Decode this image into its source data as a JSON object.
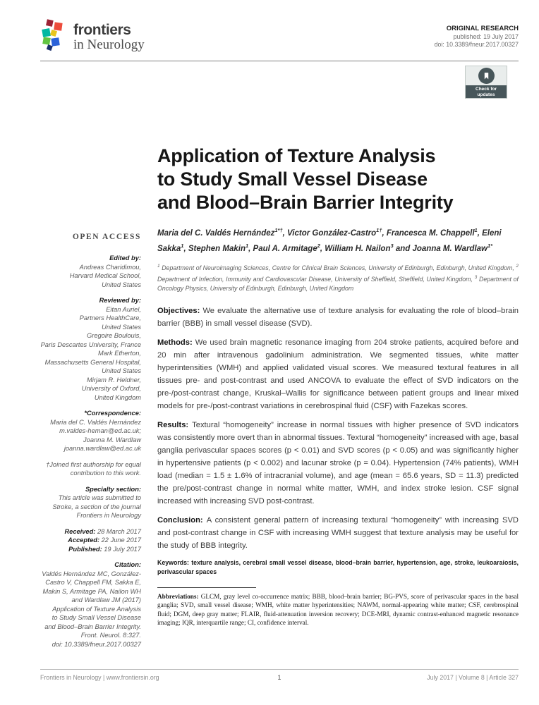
{
  "header": {
    "brand": "frontiers",
    "journal": "in Neurology",
    "article_type": "ORIGINAL RESEARCH",
    "published": "published: 19 July 2017",
    "doi": "doi: 10.3389/fneur.2017.00327"
  },
  "badge": {
    "line1": "Check for",
    "line2": "updates"
  },
  "article": {
    "title_lines": [
      "Application of Texture Analysis",
      "to Study Small Vessel Disease",
      "and Blood–Brain Barrier Integrity"
    ],
    "authors": [
      {
        "name": "Maria del C. Valdés Hernández",
        "sup": "1*†"
      },
      {
        "name": ", Victor González-Castro",
        "sup": "1†"
      },
      {
        "name": ", Francesca M. Chappell",
        "sup": "1"
      },
      {
        "name": ", Eleni Sakka",
        "sup": "1"
      },
      {
        "name": ", Stephen Makin",
        "sup": "1"
      },
      {
        "name": ", Paul A. Armitage",
        "sup": "2"
      },
      {
        "name": ", William H. Nailon",
        "sup": "3"
      },
      {
        "name": " and Joanna M. Wardlaw",
        "sup": "1*"
      }
    ],
    "affiliations": [
      {
        "sup": "1",
        "text": " Department of Neuroimaging Sciences, Centre for Clinical Brain Sciences, University of Edinburgh, Edinburgh, United Kingdom, "
      },
      {
        "sup": "2",
        "text": " Department of Infection, Immunity and Cardiovascular Disease, University of Sheffield, Sheffield, United Kingdom, "
      },
      {
        "sup": "3",
        "text": " Department of Oncology Physics, University of Edinburgh, Edinburgh, United Kingdom"
      }
    ]
  },
  "sidebar": {
    "open_access": "OPEN ACCESS",
    "blocks": [
      {
        "label": "Edited by:",
        "lines": [
          "Andreas Charidimou,",
          "Harvard Medical School,",
          "United States"
        ]
      },
      {
        "label": "Reviewed by:",
        "lines": [
          "Eitan Auriel,",
          "Partners HealthCare,",
          "United States",
          "Gregoire Boulouis,",
          "Paris Descartes University, France",
          "Mark Etherton,",
          "Massachusetts General Hospital,",
          "United States",
          "Mirjam R. Heldner,",
          "University of Oxford,",
          "United Kingdom"
        ]
      },
      {
        "label": "*Correspondence:",
        "lines": [
          "Maria del C. Valdés Hernández",
          "m.valdes-heman@ed.ac.uk;",
          "Joanna M. Wardlaw",
          "joanna.wardlaw@ed.ac.uk"
        ]
      },
      {
        "label": "",
        "lines": [
          "†Joined first authorship for equal",
          "contribution to this work."
        ]
      },
      {
        "label": "Specialty section:",
        "lines": [
          "This article was submitted to",
          "Stroke, a section of the journal",
          "Frontiers in Neurology"
        ]
      }
    ],
    "dates": [
      {
        "label": "Received:",
        "value": "28 March 2017"
      },
      {
        "label": "Accepted:",
        "value": "22 June 2017"
      },
      {
        "label": "Published:",
        "value": "19 July 2017"
      }
    ],
    "citation": {
      "label": "Citation:",
      "lines": [
        "Valdés Hernández MC, González-",
        "Castro V, Chappell FM, Sakka E,",
        "Makin S, Armitage PA, Nailon WH",
        "and Wardlaw JM (2017)",
        "Application of Texture Analysis",
        "to Study Small Vessel Disease",
        "and Blood–Brain Barrier Integrity.",
        "Front. Neurol. 8:327.",
        "doi: 10.3389/fneur.2017.00327"
      ]
    }
  },
  "abstract": [
    {
      "label": "Objectives:",
      "text": "We evaluate the alternative use of texture analysis for evaluating the role of blood–brain barrier (BBB) in small vessel disease (SVD)."
    },
    {
      "label": "Methods:",
      "text": "We used brain magnetic resonance imaging from 204 stroke patients, acquired before and 20 min after intravenous gadolinium administration. We segmented tissues, white matter hyperintensities (WMH) and applied validated visual scores. We measured textural features in all tissues pre- and post-contrast and used ANCOVA to evaluate the effect of SVD indicators on the pre-/post-contrast change, Kruskal–Wallis for significance between patient groups and linear mixed models for pre-/post-contrast variations in cerebrospinal fluid (CSF) with Fazekas scores."
    },
    {
      "label": "Results:",
      "text": "Textural “homogeneity” increase in normal tissues with higher presence of SVD indicators was consistently more overt than in abnormal tissues. Textural “homogeneity” increased with age, basal ganglia perivascular spaces scores (p < 0.01) and SVD scores (p < 0.05) and was significantly higher in hypertensive patients (p < 0.002) and lacunar stroke (p = 0.04). Hypertension (74% patients), WMH load (median = 1.5 ± 1.6% of intracranial volume), and age (mean = 65.6 years, SD = 11.3) predicted the pre/post-contrast change in normal white matter, WMH, and index stroke lesion. CSF signal increased with increasing SVD post-contrast."
    },
    {
      "label": "Conclusion:",
      "text": "A consistent general pattern of increasing textural “homogeneity” with increasing SVD and post-contrast change in CSF with increasing WMH suggest that texture analysis may be useful for the study of BBB integrity."
    }
  ],
  "keywords": {
    "label": "Keywords:",
    "text": "texture analysis, cerebral small vessel disease, blood–brain barrier, hypertension, age, stroke, leukoaraiosis, perivascular spaces"
  },
  "abbreviations": {
    "label": "Abbreviations:",
    "text": "GLCM, gray level co-occurrence matrix; BBB, blood–brain barrier; BG-PVS, score of perivascular spaces in the basal ganglia; SVD, small vessel disease; WMH, white matter hyperintensities; NAWM, normal-appearing white matter; CSF, cerebrospinal fluid; DGM, deep gray matter; FLAIR, fluid-attenuation inversion recovery; DCE-MRI, dynamic contrast-enhanced magnetic resonance imaging; IQR, interquartile range; CI, confidence interval."
  },
  "footer": {
    "left_journal": "Frontiers in Neurology",
    "left_sep": "|",
    "left_site": "www.frontiersin.org",
    "page": "1",
    "right": "July 2017  |  Volume 8  |  Article 327"
  }
}
